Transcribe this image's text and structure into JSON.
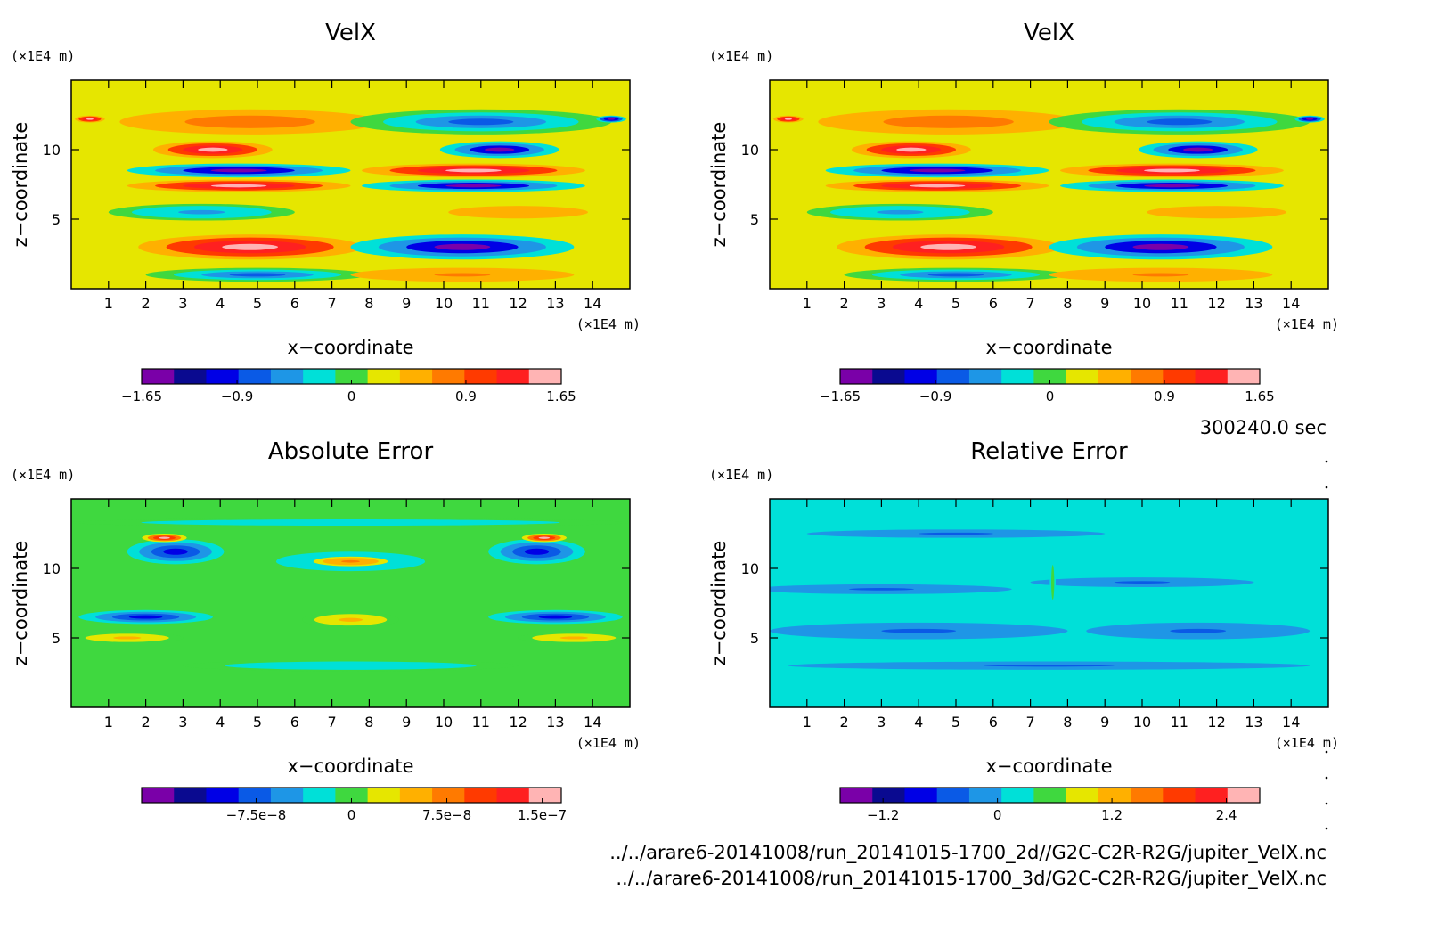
{
  "timestamp": "300240.0 sec",
  "footer_paths": [
    "../../arare6-20141008/run_20141015-1700_2d//G2C-C2R-R2G/jupiter_VelX.nc",
    "../../arare6-20141008/run_20141015-1700_3d/G2C-C2R-R2G/jupiter_VelX.nc"
  ],
  "palette": [
    "#7a00a8",
    "#0a0a90",
    "#0000e6",
    "#0a5ae6",
    "#1e96e6",
    "#00e0d8",
    "#3fd83f",
    "#e6e600",
    "#ffb000",
    "#ff7a00",
    "#ff3a00",
    "#ff2020",
    "#ffb4b4"
  ],
  "chart_data": [
    {
      "type": "heatmap",
      "title": "VelX",
      "xlabel": "x−coordinate",
      "ylabel": "z−coordinate",
      "x_unit": "(×1E4 m)",
      "y_unit": "(×1E4 m)",
      "xlim": [
        0,
        15
      ],
      "ylim": [
        0,
        15
      ],
      "x_ticks": [
        1,
        2,
        3,
        4,
        5,
        6,
        7,
        8,
        9,
        10,
        11,
        12,
        13,
        14
      ],
      "y_ticks": [
        5,
        10
      ],
      "colorbar": {
        "min": -1.65,
        "max": 1.65,
        "tick_values": [
          -1.65,
          -0.9,
          0,
          0.9,
          1.65
        ],
        "tick_labels": [
          "−1.65",
          "−0.9",
          "0",
          "0.9",
          "1.65"
        ]
      },
      "background_value": 0.3,
      "features": [
        {
          "x": 4.8,
          "z": 12.0,
          "rx": 3.5,
          "rz": 0.9,
          "v": 0.8
        },
        {
          "x": 3.8,
          "z": 10.0,
          "rx": 1.6,
          "rz": 0.6,
          "v": 1.5
        },
        {
          "x": 4.5,
          "z": 8.5,
          "rx": 3.0,
          "rz": 0.5,
          "v": -1.55
        },
        {
          "x": 4.5,
          "z": 7.4,
          "rx": 3.0,
          "rz": 0.45,
          "v": 1.5
        },
        {
          "x": 3.5,
          "z": 5.5,
          "rx": 2.5,
          "rz": 0.6,
          "v": -0.6
        },
        {
          "x": 4.8,
          "z": 3.0,
          "rx": 3.0,
          "rz": 0.9,
          "v": 1.55
        },
        {
          "x": 5.0,
          "z": 1.0,
          "rx": 3.0,
          "rz": 0.5,
          "v": -0.7
        },
        {
          "x": 0.5,
          "z": 12.2,
          "rx": 0.4,
          "rz": 0.25,
          "v": 1.6
        },
        {
          "x": 11.0,
          "z": 12.0,
          "rx": 3.5,
          "rz": 0.9,
          "v": -0.8
        },
        {
          "x": 11.5,
          "z": 10.0,
          "rx": 1.6,
          "rz": 0.6,
          "v": -1.5
        },
        {
          "x": 10.8,
          "z": 8.5,
          "rx": 3.0,
          "rz": 0.5,
          "v": 1.55
        },
        {
          "x": 10.8,
          "z": 7.4,
          "rx": 3.0,
          "rz": 0.45,
          "v": -1.5
        },
        {
          "x": 12.0,
          "z": 5.5,
          "rx": 2.5,
          "rz": 0.6,
          "v": 0.6
        },
        {
          "x": 10.5,
          "z": 3.0,
          "rx": 3.0,
          "rz": 0.9,
          "v": -1.55
        },
        {
          "x": 10.5,
          "z": 1.0,
          "rx": 3.0,
          "rz": 0.5,
          "v": 0.7
        },
        {
          "x": 14.5,
          "z": 12.2,
          "rx": 0.4,
          "rz": 0.25,
          "v": -1.6
        }
      ]
    },
    {
      "type": "heatmap",
      "title": "VelX",
      "xlabel": "x−coordinate",
      "ylabel": "z−coordinate",
      "x_unit": "(×1E4 m)",
      "y_unit": "(×1E4 m)",
      "xlim": [
        0,
        15
      ],
      "ylim": [
        0,
        15
      ],
      "x_ticks": [
        1,
        2,
        3,
        4,
        5,
        6,
        7,
        8,
        9,
        10,
        11,
        12,
        13,
        14
      ],
      "y_ticks": [
        5,
        10
      ],
      "colorbar": {
        "min": -1.65,
        "max": 1.65,
        "tick_values": [
          -1.65,
          -0.9,
          0,
          0.9,
          1.65
        ],
        "tick_labels": [
          "−1.65",
          "−0.9",
          "0",
          "0.9",
          "1.65"
        ]
      },
      "background_value": 0.3,
      "features": [
        {
          "x": 4.8,
          "z": 12.0,
          "rx": 3.5,
          "rz": 0.9,
          "v": 0.8
        },
        {
          "x": 3.8,
          "z": 10.0,
          "rx": 1.6,
          "rz": 0.6,
          "v": 1.5
        },
        {
          "x": 4.5,
          "z": 8.5,
          "rx": 3.0,
          "rz": 0.5,
          "v": -1.55
        },
        {
          "x": 4.5,
          "z": 7.4,
          "rx": 3.0,
          "rz": 0.45,
          "v": 1.5
        },
        {
          "x": 3.5,
          "z": 5.5,
          "rx": 2.5,
          "rz": 0.6,
          "v": -0.6
        },
        {
          "x": 4.8,
          "z": 3.0,
          "rx": 3.0,
          "rz": 0.9,
          "v": 1.55
        },
        {
          "x": 5.0,
          "z": 1.0,
          "rx": 3.0,
          "rz": 0.5,
          "v": -0.7
        },
        {
          "x": 0.5,
          "z": 12.2,
          "rx": 0.4,
          "rz": 0.25,
          "v": 1.6
        },
        {
          "x": 11.0,
          "z": 12.0,
          "rx": 3.5,
          "rz": 0.9,
          "v": -0.8
        },
        {
          "x": 11.5,
          "z": 10.0,
          "rx": 1.6,
          "rz": 0.6,
          "v": -1.5
        },
        {
          "x": 10.8,
          "z": 8.5,
          "rx": 3.0,
          "rz": 0.5,
          "v": 1.55
        },
        {
          "x": 10.8,
          "z": 7.4,
          "rx": 3.0,
          "rz": 0.45,
          "v": -1.5
        },
        {
          "x": 12.0,
          "z": 5.5,
          "rx": 2.5,
          "rz": 0.6,
          "v": 0.6
        },
        {
          "x": 10.5,
          "z": 3.0,
          "rx": 3.0,
          "rz": 0.9,
          "v": -1.55
        },
        {
          "x": 10.5,
          "z": 1.0,
          "rx": 3.0,
          "rz": 0.5,
          "v": 0.7
        },
        {
          "x": 14.5,
          "z": 12.2,
          "rx": 0.4,
          "rz": 0.25,
          "v": -1.6
        }
      ]
    },
    {
      "type": "heatmap",
      "title": "Absolute Error",
      "xlabel": "x−coordinate",
      "ylabel": "z−coordinate",
      "x_unit": "(×1E4 m)",
      "y_unit": "(×1E4 m)",
      "xlim": [
        0,
        15
      ],
      "ylim": [
        0,
        15
      ],
      "x_ticks": [
        1,
        2,
        3,
        4,
        5,
        6,
        7,
        8,
        9,
        10,
        11,
        12,
        13,
        14
      ],
      "y_ticks": [
        5,
        10
      ],
      "colorbar": {
        "min": -1.65e-07,
        "max": 1.65e-07,
        "tick_values": [
          -7.5e-08,
          0,
          7.5e-08,
          1.5e-07
        ],
        "tick_labels": [
          "−7.5e−8",
          "0",
          "7.5e−8",
          "1.5e−7"
        ]
      },
      "background_value": 0.0,
      "features": [
        {
          "x": 2.8,
          "z": 11.2,
          "rx": 1.3,
          "rz": 0.9,
          "v": -1.1e-07
        },
        {
          "x": 2.5,
          "z": 12.2,
          "rx": 0.6,
          "rz": 0.3,
          "v": 1.4e-07
        },
        {
          "x": 12.5,
          "z": 11.2,
          "rx": 1.3,
          "rz": 0.9,
          "v": -1.1e-07
        },
        {
          "x": 12.7,
          "z": 12.2,
          "rx": 0.6,
          "rz": 0.3,
          "v": 1.4e-07
        },
        {
          "x": 7.5,
          "z": 10.5,
          "rx": 2.0,
          "rz": 0.7,
          "v": -6e-08
        },
        {
          "x": 7.5,
          "z": 10.5,
          "rx": 1.0,
          "rz": 0.35,
          "v": 8e-08
        },
        {
          "x": 2.0,
          "z": 6.5,
          "rx": 1.8,
          "rz": 0.5,
          "v": -1e-07
        },
        {
          "x": 13.0,
          "z": 6.5,
          "rx": 1.8,
          "rz": 0.5,
          "v": -1e-07
        },
        {
          "x": 7.5,
          "z": 6.3,
          "rx": 1.3,
          "rz": 0.55,
          "v": 4e-08
        },
        {
          "x": 1.5,
          "z": 5.0,
          "rx": 1.5,
          "rz": 0.4,
          "v": 4e-08
        },
        {
          "x": 13.5,
          "z": 5.0,
          "rx": 1.5,
          "rz": 0.4,
          "v": 4e-08
        },
        {
          "x": 7.5,
          "z": 3.0,
          "rx": 4.5,
          "rz": 0.4,
          "v": -3e-08
        },
        {
          "x": 7.5,
          "z": 13.3,
          "rx": 7.5,
          "rz": 0.3,
          "v": -3e-08
        }
      ]
    },
    {
      "type": "heatmap",
      "title": "Relative Error",
      "xlabel": "x−coordinate",
      "ylabel": "z−coordinate",
      "x_unit": "(×1E4 m)",
      "y_unit": "(×1E4 m)",
      "xlim": [
        0,
        15
      ],
      "ylim": [
        0,
        15
      ],
      "x_ticks": [
        1,
        2,
        3,
        4,
        5,
        6,
        7,
        8,
        9,
        10,
        11,
        12,
        13,
        14
      ],
      "y_ticks": [
        5,
        10
      ],
      "colorbar": {
        "min": -1.65,
        "max": 2.75,
        "tick_values": [
          -1.2,
          0,
          1.2,
          2.4
        ],
        "tick_labels": [
          "−1.2",
          "0",
          "1.2",
          "2.4"
        ]
      },
      "background_value": 0.15,
      "features": [
        {
          "x": 3.0,
          "z": 8.5,
          "rx": 3.5,
          "rz": 0.35,
          "v": -0.35
        },
        {
          "x": 10.0,
          "z": 9.0,
          "rx": 3.0,
          "rz": 0.35,
          "v": -0.35
        },
        {
          "x": 4.0,
          "z": 5.5,
          "rx": 4.0,
          "rz": 0.6,
          "v": -0.35
        },
        {
          "x": 11.5,
          "z": 5.5,
          "rx": 3.0,
          "rz": 0.6,
          "v": -0.35
        },
        {
          "x": 7.5,
          "z": 3.0,
          "rx": 7.0,
          "rz": 0.3,
          "v": -0.35
        },
        {
          "x": 5.0,
          "z": 12.5,
          "rx": 4.0,
          "rz": 0.3,
          "v": -0.35
        },
        {
          "x": 7.6,
          "z": 9.0,
          "rx": 0.08,
          "rz": 2.5,
          "v": 0.6
        }
      ]
    }
  ]
}
